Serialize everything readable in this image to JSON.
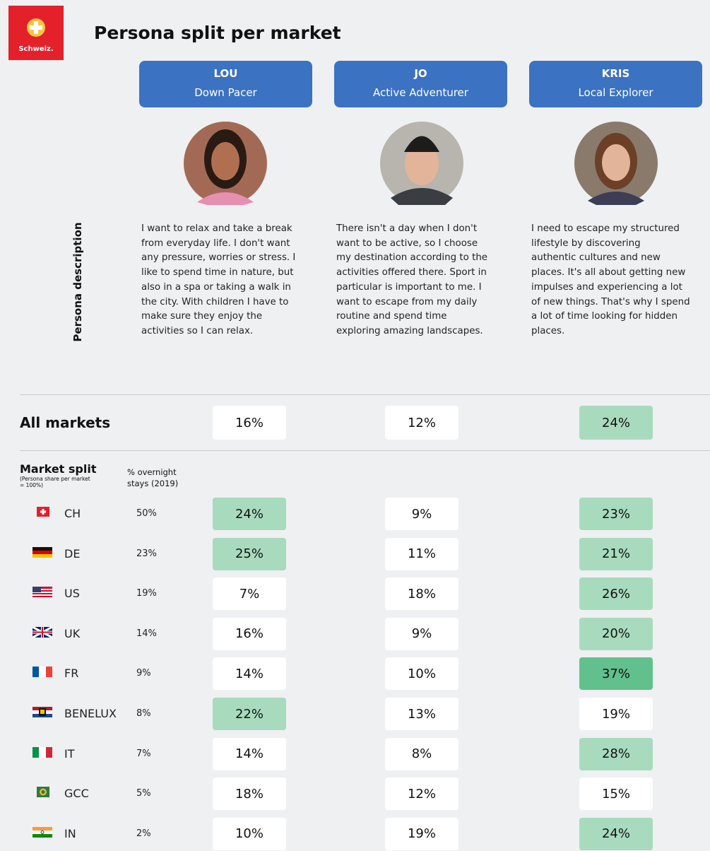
{
  "logo": {
    "text": "Schweiz."
  },
  "title": "Persona split per market",
  "side_label": "Persona description",
  "personas": [
    {
      "name": "LOU",
      "role": "Down Pacer",
      "description": [
        "I want to relax and take a break",
        "from everyday life. I don't want",
        "any pressure, worries or stress. I",
        "like to spend time in nature, but",
        "also in a spa or taking a walk in",
        "the city. With children I have to",
        "make sure they enjoy the",
        "activities so I can relax."
      ]
    },
    {
      "name": "JO",
      "role": "Active Adventurer",
      "description": [
        "There isn't a day when I don't",
        "want to be active, so I choose",
        "my destination according to the",
        "activities offered there. Sport in",
        "particular is important to me. I",
        "want to escape from my daily",
        "routine and spend time",
        "exploring amazing landscapes."
      ]
    },
    {
      "name": "KRIS",
      "role": "Local Explorer",
      "description": [
        "I need to escape my structured",
        "lifestyle by discovering",
        "authentic cultures and new",
        "places. It's all about getting new",
        "impulses and experiencing a lot",
        "of new things. That's why I spend",
        "a lot of time looking for hidden",
        "places."
      ]
    }
  ],
  "all_markets": {
    "label": "All markets",
    "cells": [
      {
        "text": "16%",
        "fill": "#ffffff"
      },
      {
        "text": "12%",
        "fill": "#ffffff"
      },
      {
        "text": "24%",
        "fill": "#a8dbbe"
      }
    ]
  },
  "market_split": {
    "label": "Market split",
    "note": [
      "(Persona share per market",
      "= 100%)"
    ],
    "stays_header": [
      "% overnight",
      "stays (2019)"
    ],
    "rows": [
      {
        "market": "CH",
        "stays": "50%",
        "cells": [
          {
            "text": "24%",
            "fill": "#a8dbbe"
          },
          {
            "text": "9%",
            "fill": "#ffffff"
          },
          {
            "text": "23%",
            "fill": "#a8dbbe"
          }
        ]
      },
      {
        "market": "DE",
        "stays": "23%",
        "cells": [
          {
            "text": "25%",
            "fill": "#a8dbbe"
          },
          {
            "text": "11%",
            "fill": "#ffffff"
          },
          {
            "text": "21%",
            "fill": "#a8dbbe"
          }
        ]
      },
      {
        "market": "US",
        "stays": "19%",
        "cells": [
          {
            "text": "7%",
            "fill": "#ffffff"
          },
          {
            "text": "18%",
            "fill": "#ffffff"
          },
          {
            "text": "26%",
            "fill": "#a8dbbe"
          }
        ]
      },
      {
        "market": "UK",
        "stays": "14%",
        "cells": [
          {
            "text": "16%",
            "fill": "#ffffff"
          },
          {
            "text": "9%",
            "fill": "#ffffff"
          },
          {
            "text": "20%",
            "fill": "#a8dbbe"
          }
        ]
      },
      {
        "market": "FR",
        "stays": "9%",
        "cells": [
          {
            "text": "14%",
            "fill": "#ffffff"
          },
          {
            "text": "10%",
            "fill": "#ffffff"
          },
          {
            "text": "37%",
            "fill": "#62c08d"
          }
        ]
      },
      {
        "market": "BENELUX",
        "stays": "8%",
        "cells": [
          {
            "text": "22%",
            "fill": "#a8dbbe"
          },
          {
            "text": "13%",
            "fill": "#ffffff"
          },
          {
            "text": "19%",
            "fill": "#ffffff"
          }
        ]
      },
      {
        "market": "IT",
        "stays": "7%",
        "cells": [
          {
            "text": "14%",
            "fill": "#ffffff"
          },
          {
            "text": "8%",
            "fill": "#ffffff"
          },
          {
            "text": "28%",
            "fill": "#a8dbbe"
          }
        ]
      },
      {
        "market": "GCC",
        "stays": "5%",
        "cells": [
          {
            "text": "18%",
            "fill": "#ffffff"
          },
          {
            "text": "12%",
            "fill": "#ffffff"
          },
          {
            "text": "15%",
            "fill": "#ffffff"
          }
        ]
      },
      {
        "market": "IN",
        "stays": "2%",
        "cells": [
          {
            "text": "10%",
            "fill": "#ffffff"
          },
          {
            "text": "19%",
            "fill": "#ffffff"
          },
          {
            "text": "24%",
            "fill": "#a8dbbe"
          }
        ]
      }
    ]
  }
}
